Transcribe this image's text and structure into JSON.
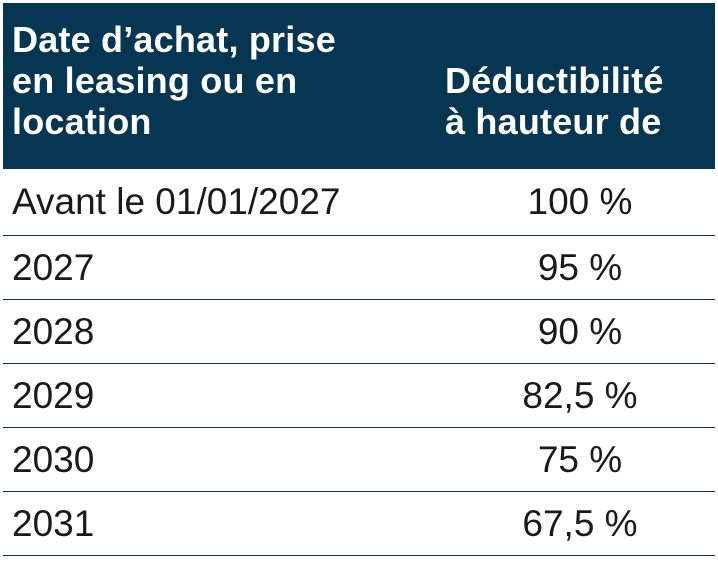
{
  "header": {
    "col1_line1": "Date d’achat, prise",
    "col1_line2": "en leasing ou en",
    "col1_line3": "location",
    "col2_line1": "Déductibilité",
    "col2_line2": "à hauteur de"
  },
  "rows": [
    {
      "period": "Avant le 01/01/2027",
      "rate": "100 %"
    },
    {
      "period": "2027",
      "rate": "95 %"
    },
    {
      "period": "2028",
      "rate": "90 %"
    },
    {
      "period": "2029",
      "rate": "82,5 %"
    },
    {
      "period": "2030",
      "rate": "75 %"
    },
    {
      "period": "2031",
      "rate": "67,5 %"
    }
  ],
  "colors": {
    "header_bg": "#063651",
    "header_text": "#ffffff",
    "body_text": "#1a1a1a",
    "rule": "#063651"
  }
}
